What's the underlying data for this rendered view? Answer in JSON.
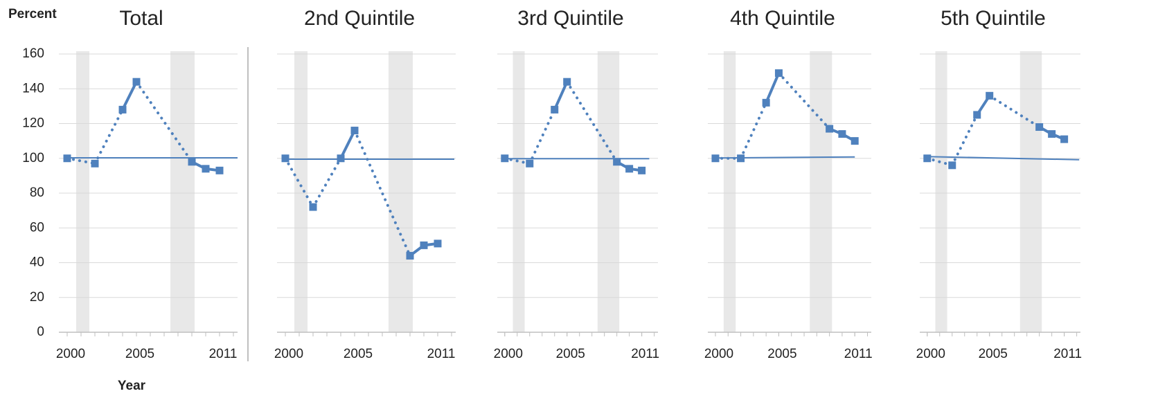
{
  "chart_data": [
    {
      "type": "line",
      "title": "Total",
      "y_label": "Percent",
      "x_label": "Year",
      "x": [
        2000,
        2002,
        2004,
        2005,
        2009,
        2010,
        2011
      ],
      "values": [
        100,
        97,
        128,
        144,
        98,
        94,
        93
      ],
      "color": "#4f81bd",
      "xlim": [
        1999.4,
        2012.3
      ],
      "xticks": [
        2000,
        2005,
        2011
      ],
      "ylim": [
        0,
        160
      ],
      "yticks": [
        0,
        20,
        40,
        60,
        80,
        100,
        120,
        140,
        160
      ],
      "grid": true,
      "shaded_periods": [
        [
          2000.65,
          2001.6
        ],
        [
          2007.45,
          2009.2
        ]
      ],
      "trend_line": {
        "x": [
          2000,
          2012.3
        ],
        "y": [
          100.3,
          100.3
        ]
      }
    },
    {
      "type": "line",
      "title": "2nd Quintile",
      "x": [
        2000,
        2002,
        2004,
        2005,
        2009,
        2010,
        2011
      ],
      "values": [
        100,
        72,
        100,
        116,
        44,
        50,
        51
      ],
      "color": "#4f81bd",
      "xlim": [
        1999.4,
        2012.3
      ],
      "xticks": [
        2000,
        2005,
        2011
      ],
      "ylim": [
        0,
        160
      ],
      "yticks": [
        0,
        20,
        40,
        60,
        80,
        100,
        120,
        140,
        160
      ],
      "grid": true,
      "shaded_periods": [
        [
          2000.65,
          2001.6
        ],
        [
          2007.45,
          2009.2
        ]
      ],
      "trend_line": {
        "x": [
          2000,
          2012.2
        ],
        "y": [
          99.5,
          99.5
        ]
      }
    },
    {
      "type": "line",
      "title": "3rd Quintile",
      "x": [
        2000,
        2002,
        2004,
        2005,
        2009,
        2010,
        2011
      ],
      "values": [
        100,
        97,
        128,
        144,
        98,
        94,
        93
      ],
      "color": "#4f81bd",
      "xlim": [
        1999.4,
        2012.3
      ],
      "xticks": [
        2000,
        2005,
        2011
      ],
      "ylim": [
        0,
        160
      ],
      "yticks": [
        0,
        20,
        40,
        60,
        80,
        100,
        120,
        140,
        160
      ],
      "grid": true,
      "shaded_periods": [
        [
          2000.65,
          2001.6
        ],
        [
          2007.45,
          2009.2
        ]
      ],
      "trend_line": {
        "x": [
          2000,
          2011.6
        ],
        "y": [
          99.8,
          99.8
        ]
      }
    },
    {
      "type": "line",
      "title": "4th Quintile",
      "x": [
        2000,
        2002,
        2004,
        2005,
        2009,
        2010,
        2011
      ],
      "values": [
        100,
        100,
        132,
        149,
        117,
        114,
        110
      ],
      "color": "#4f81bd",
      "xlim": [
        1999.4,
        2012.3
      ],
      "xticks": [
        2000,
        2005,
        2011
      ],
      "ylim": [
        0,
        160
      ],
      "yticks": [
        0,
        20,
        40,
        60,
        80,
        100,
        120,
        140,
        160
      ],
      "grid": true,
      "shaded_periods": [
        [
          2000.65,
          2001.6
        ],
        [
          2007.45,
          2009.2
        ]
      ],
      "trend_line": {
        "x": [
          2000,
          2011
        ],
        "y": [
          100.2,
          100.8
        ]
      }
    },
    {
      "type": "line",
      "title": "5th Quintile",
      "x": [
        2000,
        2002,
        2004,
        2005,
        2009,
        2010,
        2011
      ],
      "values": [
        100,
        96,
        125,
        136,
        118,
        114,
        111
      ],
      "color": "#4f81bd",
      "xlim": [
        1999.4,
        2012.3
      ],
      "xticks": [
        2000,
        2005,
        2011
      ],
      "ylim": [
        0,
        160
      ],
      "yticks": [
        0,
        20,
        40,
        60,
        80,
        100,
        120,
        140,
        160
      ],
      "grid": true,
      "shaded_periods": [
        [
          2000.65,
          2001.6
        ],
        [
          2007.45,
          2009.2
        ]
      ],
      "trend_line": {
        "x": [
          2000,
          2012.2
        ],
        "y": [
          101,
          99.2
        ]
      }
    }
  ]
}
